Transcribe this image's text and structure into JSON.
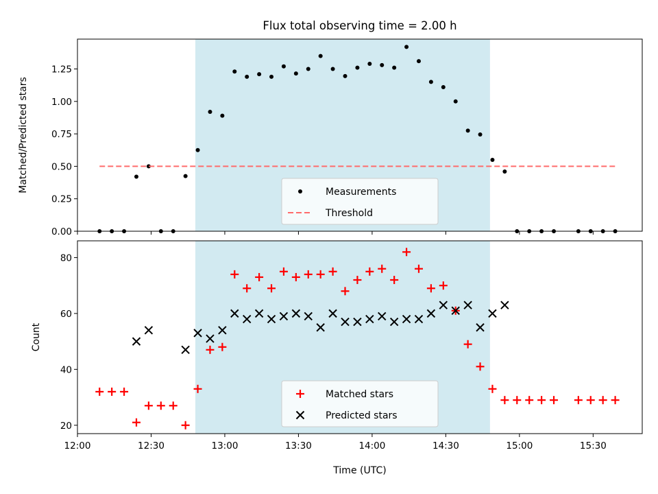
{
  "chart_data": [
    {
      "type": "scatter",
      "title": "Flux total observing time = 2.00 h",
      "xlabel": "",
      "ylabel": "Matched/Predicted stars",
      "xlim": [
        "12:00",
        "15:50"
      ],
      "ylim": [
        0,
        1.48
      ],
      "y_ticks": [
        "0.00",
        "0.25",
        "0.50",
        "0.75",
        "1.00",
        "1.25"
      ],
      "shaded_region": {
        "x_start": "12:48",
        "x_end": "14:48",
        "color": "#add8e6"
      },
      "legend_position": "lower center",
      "series": [
        {
          "name": "Measurements",
          "marker": "dot",
          "color": "#000000",
          "x": [
            "12:09",
            "12:14",
            "12:19",
            "12:24",
            "12:29",
            "12:34",
            "12:39",
            "12:44",
            "12:49",
            "12:54",
            "12:59",
            "13:04",
            "13:09",
            "13:14",
            "13:19",
            "13:24",
            "13:29",
            "13:34",
            "13:39",
            "13:44",
            "13:49",
            "13:54",
            "13:59",
            "14:04",
            "14:09",
            "14:14",
            "14:19",
            "14:24",
            "14:29",
            "14:34",
            "14:39",
            "14:44",
            "14:49",
            "14:54",
            "14:59",
            "15:04",
            "15:09",
            "15:14",
            "15:24",
            "15:29",
            "15:34",
            "15:39"
          ],
          "y": [
            0,
            0,
            0,
            0.42,
            0.5,
            0,
            0,
            0.425,
            0.625,
            0.92,
            0.89,
            1.23,
            1.19,
            1.21,
            1.19,
            1.27,
            1.215,
            1.25,
            1.35,
            1.25,
            1.195,
            1.26,
            1.29,
            1.28,
            1.26,
            1.42,
            1.31,
            1.15,
            1.11,
            1.0,
            0.775,
            0.745,
            0.55,
            0.46,
            0,
            0,
            0,
            0,
            0,
            0,
            0,
            0
          ]
        },
        {
          "name": "Threshold",
          "style": "dashed",
          "color": "#ff6b6b",
          "x": [
            "12:09",
            "15:39"
          ],
          "y": [
            0.5,
            0.5
          ]
        }
      ]
    },
    {
      "type": "scatter",
      "title": "",
      "xlabel": "Time (UTC)",
      "ylabel": "Count",
      "xlim": [
        "12:00",
        "15:50"
      ],
      "ylim": [
        17,
        86
      ],
      "x_ticks": [
        "12:00",
        "12:30",
        "13:00",
        "13:30",
        "14:00",
        "14:30",
        "15:00",
        "15:30"
      ],
      "y_ticks": [
        "20",
        "40",
        "60",
        "80"
      ],
      "shaded_region": {
        "x_start": "12:48",
        "x_end": "14:48",
        "color": "#add8e6"
      },
      "legend_position": "lower center",
      "series": [
        {
          "name": "Matched stars",
          "marker": "plus",
          "color": "#ff0000",
          "x": [
            "12:09",
            "12:14",
            "12:19",
            "12:24",
            "12:29",
            "12:34",
            "12:39",
            "12:44",
            "12:49",
            "12:54",
            "12:59",
            "13:04",
            "13:09",
            "13:14",
            "13:19",
            "13:24",
            "13:29",
            "13:34",
            "13:39",
            "13:44",
            "13:49",
            "13:54",
            "13:59",
            "14:04",
            "14:09",
            "14:14",
            "14:19",
            "14:24",
            "14:29",
            "14:34",
            "14:39",
            "14:44",
            "14:49",
            "14:54",
            "14:59",
            "15:04",
            "15:09",
            "15:14",
            "15:24",
            "15:29",
            "15:34",
            "15:39"
          ],
          "y": [
            32,
            32,
            32,
            21,
            27,
            27,
            27,
            20,
            33,
            47,
            48,
            74,
            69,
            73,
            69,
            75,
            73,
            74,
            74,
            75,
            68,
            72,
            75,
            76,
            72,
            82,
            76,
            69,
            70,
            61,
            49,
            41,
            33,
            29,
            29,
            29,
            29,
            29,
            29,
            29,
            29,
            29
          ]
        },
        {
          "name": "Predicted stars",
          "marker": "x",
          "color": "#000000",
          "x": [
            "12:24",
            "12:29",
            "12:44",
            "12:49",
            "12:54",
            "12:59",
            "13:04",
            "13:09",
            "13:14",
            "13:19",
            "13:24",
            "13:29",
            "13:34",
            "13:39",
            "13:44",
            "13:49",
            "13:54",
            "13:59",
            "14:04",
            "14:09",
            "14:14",
            "14:19",
            "14:24",
            "14:29",
            "14:34",
            "14:39",
            "14:44",
            "14:49",
            "14:54"
          ],
          "y": [
            50,
            54,
            47,
            53,
            51,
            54,
            60,
            58,
            60,
            58,
            59,
            60,
            59,
            55,
            60,
            57,
            57,
            58,
            59,
            57,
            58,
            58,
            60,
            63,
            61,
            63,
            55,
            60,
            63
          ]
        }
      ]
    }
  ]
}
